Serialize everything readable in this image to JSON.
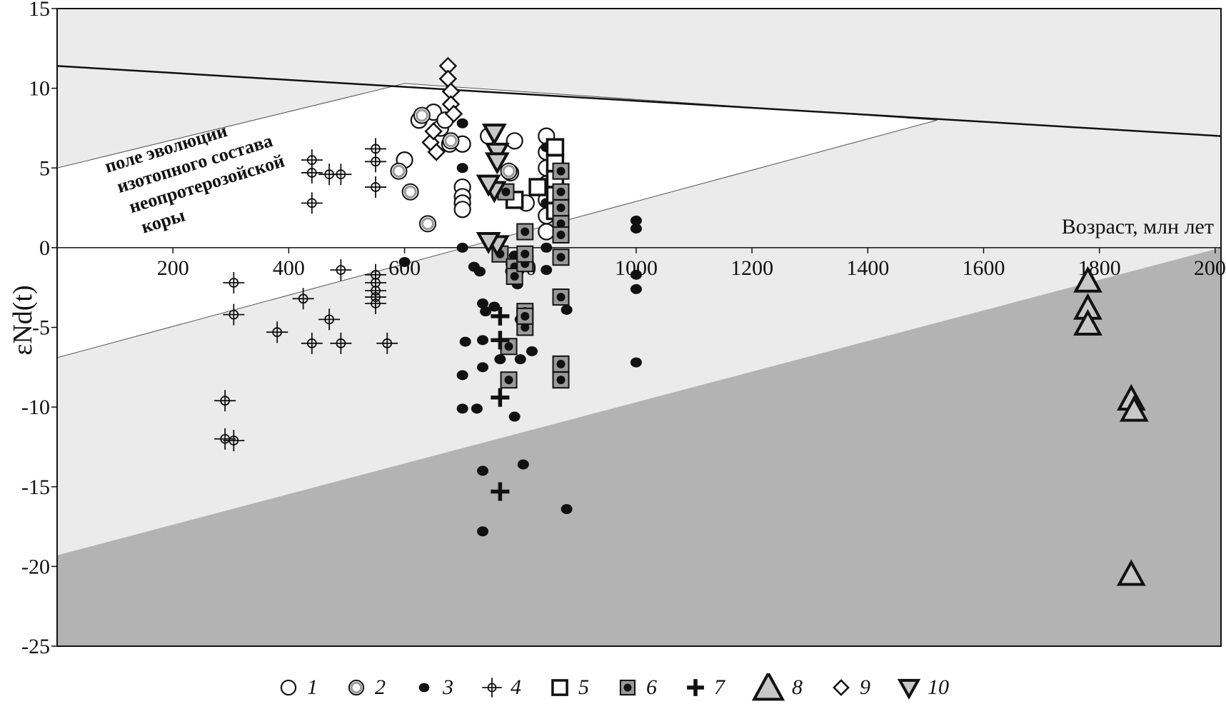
{
  "chart_data": {
    "type": "scatter",
    "title": "",
    "xlabel": "Возраст, млн лет",
    "ylabel": "εNd(t)",
    "xlim": [
      0,
      2010
    ],
    "ylim": [
      -25,
      15
    ],
    "x_ticks": [
      200,
      400,
      600,
      800,
      1000,
      1200,
      1400,
      1600,
      1800,
      2000
    ],
    "y_ticks": [
      15,
      10,
      5,
      0,
      -5,
      -10,
      -15,
      -20,
      -25
    ],
    "grid": false,
    "legend_position": "bottom",
    "annotation_lines": [
      "поле эволюции",
      "изотопного состава",
      "неопротерозойской",
      "коры"
    ],
    "regions": {
      "depleted_mantle_line": [
        [
          0,
          11.4
        ],
        [
          2010,
          7.0
        ]
      ],
      "crust_upper_line": [
        [
          0,
          5.0
        ],
        [
          600,
          10.3
        ],
        [
          1520,
          8.0
        ]
      ],
      "crust_lower_line": [
        [
          0,
          -6.9
        ],
        [
          1520,
          8.0
        ]
      ],
      "dark_field_boundary": [
        [
          0,
          -19.3
        ],
        [
          2010,
          0
        ]
      ]
    },
    "series": [
      {
        "name": "1",
        "marker": "circle-open",
        "points": [
          [
            600,
            5.5
          ],
          [
            625,
            8.0
          ],
          [
            650,
            8.5
          ],
          [
            662,
            7.5
          ],
          [
            670,
            8.0
          ],
          [
            678,
            6.5
          ],
          [
            700,
            6.5
          ],
          [
            790,
            6.7
          ],
          [
            783,
            4.7
          ],
          [
            810,
            2.8
          ],
          [
            845,
            7.0
          ],
          [
            845,
            6.0
          ],
          [
            845,
            5.0
          ],
          [
            845,
            4.0
          ],
          [
            845,
            3.0
          ],
          [
            845,
            2.0
          ],
          [
            845,
            1.0
          ],
          [
            700,
            3.8
          ],
          [
            700,
            3.2
          ],
          [
            700,
            2.8
          ],
          [
            700,
            2.4
          ],
          [
            745,
            7.0
          ]
        ]
      },
      {
        "name": "2",
        "marker": "circle-gray",
        "points": [
          [
            590,
            4.8
          ],
          [
            610,
            3.5
          ],
          [
            630,
            8.3
          ],
          [
            640,
            1.5
          ],
          [
            680,
            6.7
          ],
          [
            780,
            4.8
          ]
        ]
      },
      {
        "name": "3",
        "marker": "dot",
        "points": [
          [
            700,
            7.8
          ],
          [
            700,
            5.0
          ],
          [
            700,
            0
          ],
          [
            720,
            -1.2
          ],
          [
            730,
            -1.5
          ],
          [
            735,
            -3.5
          ],
          [
            740,
            -4.0
          ],
          [
            705,
            -5.9
          ],
          [
            700,
            -8.0
          ],
          [
            700,
            -10.1
          ],
          [
            725,
            -10.1
          ],
          [
            735,
            -5.8
          ],
          [
            735,
            -7.5
          ],
          [
            735,
            -14.0
          ],
          [
            735,
            -17.8
          ],
          [
            755,
            -3.7
          ],
          [
            765,
            -7.0
          ],
          [
            790,
            -10.6
          ],
          [
            790,
            -0.5
          ],
          [
            795,
            -2.3
          ],
          [
            800,
            -4.5
          ],
          [
            800,
            -7.0
          ],
          [
            805,
            -13.6
          ],
          [
            820,
            -6.5
          ],
          [
            845,
            6.3
          ],
          [
            845,
            2.8
          ],
          [
            845,
            0
          ],
          [
            845,
            -1.4
          ],
          [
            880,
            -3.9
          ],
          [
            880,
            -16.4
          ],
          [
            1000,
            1.7
          ],
          [
            1000,
            1.2
          ],
          [
            1000,
            -1.7
          ],
          [
            1000,
            -2.6
          ],
          [
            1000,
            -7.2
          ],
          [
            600,
            -0.9
          ]
        ]
      },
      {
        "name": "4",
        "marker": "circle-cross",
        "points": [
          [
            290,
            -9.6
          ],
          [
            290,
            -12.0
          ],
          [
            305,
            -12.1
          ],
          [
            305,
            -2.2
          ],
          [
            305,
            -4.2
          ],
          [
            380,
            -5.3
          ],
          [
            425,
            -3.2
          ],
          [
            440,
            5.5
          ],
          [
            440,
            4.7
          ],
          [
            440,
            2.8
          ],
          [
            440,
            -6.0
          ],
          [
            470,
            4.6
          ],
          [
            470,
            -4.5
          ],
          [
            490,
            4.6
          ],
          [
            490,
            -1.4
          ],
          [
            490,
            -6.0
          ],
          [
            550,
            6.2
          ],
          [
            550,
            5.4
          ],
          [
            550,
            3.8
          ],
          [
            550,
            -1.7
          ],
          [
            550,
            -2.2
          ],
          [
            550,
            -2.7
          ],
          [
            550,
            -3.1
          ],
          [
            550,
            -3.5
          ],
          [
            570,
            -6.0
          ]
        ]
      },
      {
        "name": "5",
        "marker": "square-open",
        "points": [
          [
            860,
            6.3
          ],
          [
            860,
            5.3
          ],
          [
            860,
            4.3
          ],
          [
            860,
            3.3
          ],
          [
            860,
            2.3
          ],
          [
            830,
            3.8
          ],
          [
            790,
            3.0
          ]
        ]
      },
      {
        "name": "6",
        "marker": "square-dot",
        "points": [
          [
            765,
            -0.4
          ],
          [
            775,
            3.5
          ],
          [
            790,
            -1.2
          ],
          [
            790,
            -1.8
          ],
          [
            808,
            -1.0
          ],
          [
            808,
            1.0
          ],
          [
            808,
            -0.4
          ],
          [
            808,
            -4.0
          ],
          [
            808,
            -5.0
          ],
          [
            808,
            -4.3
          ],
          [
            780,
            -6.2
          ],
          [
            780,
            -8.3
          ],
          [
            870,
            4.8
          ],
          [
            870,
            3.5
          ],
          [
            870,
            2.5
          ],
          [
            870,
            1.5
          ],
          [
            870,
            0.8
          ],
          [
            870,
            -0.6
          ],
          [
            870,
            -3.1
          ],
          [
            870,
            -7.3
          ],
          [
            870,
            -8.3
          ]
        ]
      },
      {
        "name": "7",
        "marker": "plus",
        "points": [
          [
            765,
            -4.3
          ],
          [
            765,
            -5.8
          ],
          [
            765,
            -9.4
          ],
          [
            765,
            -15.3
          ]
        ]
      },
      {
        "name": "8",
        "marker": "triangle-up",
        "points": [
          [
            1780,
            -2.1
          ],
          [
            1780,
            -3.8
          ],
          [
            1780,
            -4.8
          ],
          [
            1855,
            -9.5
          ],
          [
            1860,
            -10.2
          ],
          [
            1855,
            -20.5
          ]
        ]
      },
      {
        "name": "9",
        "marker": "diamond",
        "points": [
          [
            645,
            6.6
          ],
          [
            650,
            7.3
          ],
          [
            655,
            6.0
          ],
          [
            675,
            11.4
          ],
          [
            675,
            10.6
          ],
          [
            680,
            9.8
          ],
          [
            680,
            9.0
          ],
          [
            685,
            8.4
          ]
        ]
      },
      {
        "name": "10",
        "marker": "triangle-down",
        "points": [
          [
            755,
            7.2
          ],
          [
            760,
            6.0
          ],
          [
            760,
            5.4
          ],
          [
            755,
            3.6
          ],
          [
            760,
            0.2
          ],
          [
            745,
            0.4
          ],
          [
            745,
            4.0
          ]
        ]
      }
    ]
  }
}
